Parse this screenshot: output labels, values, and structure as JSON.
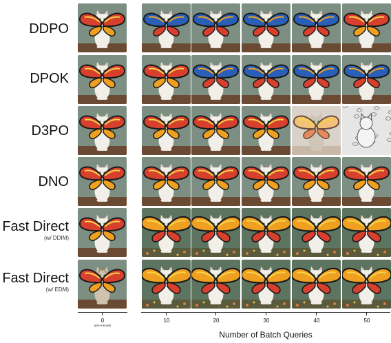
{
  "rows": [
    {
      "label": "DDPO",
      "sub": ""
    },
    {
      "label": "DPOK",
      "sub": ""
    },
    {
      "label": "D3PO",
      "sub": ""
    },
    {
      "label": "DNO",
      "sub": ""
    },
    {
      "label": "Fast Direct",
      "sub": "(w/ DDIM)"
    },
    {
      "label": "Fast Direct",
      "sub": "(w/ EDM)"
    }
  ],
  "axis": {
    "pretrained_tick": "0",
    "pretrained_sub": "(pre-trained)",
    "ticks": [
      "10",
      "20",
      "30",
      "40",
      "50"
    ],
    "title": "Number of Batch Queries"
  },
  "image_subject": "white cat with colorful butterfly wings",
  "colors": {
    "bg_green": "#7d8f82",
    "bg_green_dark": "#5e6f64",
    "floor": "#6b4a34",
    "cat": "#f2eee8",
    "wing_red": "#d8402e",
    "wing_orange": "#f0a020",
    "wing_blue": "#2a5fb8",
    "wing_black": "#1a1a1a",
    "pattern_bg": "#e6e6e6",
    "forest": "#5d7560"
  },
  "cells": [
    [
      "default",
      "blue",
      "blue",
      "blue",
      "blue",
      "orange"
    ],
    [
      "default",
      "default",
      "blue",
      "blue",
      "blue",
      "blue"
    ],
    [
      "default",
      "default",
      "default",
      "default",
      "pale",
      "pattern"
    ],
    [
      "default",
      "default",
      "default",
      "default",
      "default",
      "default"
    ],
    [
      "default",
      "forest",
      "forest",
      "forest",
      "forest",
      "forest"
    ],
    [
      "tabby",
      "forest",
      "forest",
      "forest",
      "forest",
      "forest"
    ]
  ]
}
